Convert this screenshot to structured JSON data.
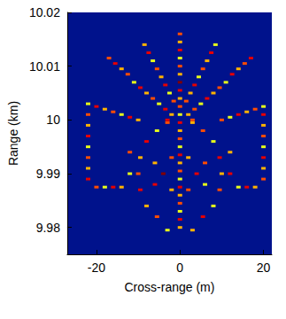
{
  "chart_data": {
    "type": "heatmap",
    "xlabel": "Cross-range (m)",
    "ylabel": "Range (km)",
    "xlim": [
      -27,
      22
    ],
    "xticks": [
      -20,
      0,
      20
    ],
    "ylim": [
      9.975,
      10.02
    ],
    "yticks": [
      9.98,
      9.99,
      10,
      10.01,
      10.02
    ],
    "zlim": [
      0,
      1
    ],
    "grid": false,
    "cells": [
      [
        0,
        10.016,
        0.8
      ],
      [
        0,
        10.0145,
        0.7
      ],
      [
        0,
        10.013,
        0.9
      ],
      [
        0,
        10.0115,
        0.6
      ],
      [
        0,
        10.01,
        0.8
      ],
      [
        0,
        10.0085,
        0.7
      ],
      [
        0,
        10.007,
        1.0
      ],
      [
        0,
        10.0055,
        0.9
      ],
      [
        0,
        10.004,
        0.7
      ],
      [
        0,
        10.0025,
        0.8
      ],
      [
        0,
        10.001,
        0.6
      ],
      [
        0,
        9.9995,
        0.9
      ],
      [
        0,
        9.998,
        0.7
      ],
      [
        0,
        9.9965,
        0.8
      ],
      [
        0,
        9.995,
        0.6
      ],
      [
        0,
        9.9935,
        0.9
      ],
      [
        0,
        9.992,
        0.7
      ],
      [
        0,
        9.9905,
        0.8
      ],
      [
        0,
        9.989,
        0.6
      ],
      [
        0,
        9.9875,
        0.9
      ],
      [
        0,
        9.986,
        0.7
      ],
      [
        0,
        9.9845,
        0.8
      ],
      [
        0,
        9.983,
        0.6
      ],
      [
        0,
        9.9815,
        0.9
      ],
      [
        0,
        9.98,
        0.7
      ],
      [
        -2,
        10.001,
        0.7
      ],
      [
        -3.5,
        10.002,
        0.9
      ],
      [
        -5,
        10.003,
        0.6
      ],
      [
        -6.5,
        10.004,
        0.8
      ],
      [
        -8,
        10.005,
        0.7
      ],
      [
        -9.5,
        10.006,
        0.9
      ],
      [
        -11,
        10.007,
        0.6
      ],
      [
        -12.5,
        10.0085,
        0.8
      ],
      [
        -14,
        10.0095,
        0.7
      ],
      [
        -15.5,
        10.0105,
        0.9
      ],
      [
        -17,
        10.0115,
        0.8
      ],
      [
        2,
        10.001,
        0.7
      ],
      [
        3.5,
        10.002,
        0.8
      ],
      [
        5,
        10.003,
        0.6
      ],
      [
        6.5,
        10.004,
        0.9
      ],
      [
        8,
        10.005,
        0.7
      ],
      [
        9.5,
        10.006,
        0.8
      ],
      [
        11,
        10.007,
        0.6
      ],
      [
        12.5,
        10.0085,
        0.9
      ],
      [
        14,
        10.0095,
        0.7
      ],
      [
        15.5,
        10.0105,
        0.8
      ],
      [
        17,
        10.0115,
        0.9
      ],
      [
        -1.5,
        10.0035,
        0.8
      ],
      [
        -2.5,
        10.005,
        0.6
      ],
      [
        -3.5,
        10.0065,
        0.9
      ],
      [
        -4.5,
        10.008,
        0.7
      ],
      [
        -5.5,
        10.0095,
        0.8
      ],
      [
        -6.5,
        10.011,
        0.6
      ],
      [
        -7.5,
        10.0125,
        0.9
      ],
      [
        -8.5,
        10.014,
        0.7
      ],
      [
        1.5,
        10.0035,
        0.8
      ],
      [
        2.5,
        10.005,
        0.7
      ],
      [
        3.5,
        10.0065,
        0.9
      ],
      [
        4.5,
        10.008,
        0.6
      ],
      [
        5.5,
        10.0095,
        0.8
      ],
      [
        6.5,
        10.011,
        0.7
      ],
      [
        7.5,
        10.0125,
        0.9
      ],
      [
        8.5,
        10.014,
        0.6
      ],
      [
        -10,
        10.0,
        0.7
      ],
      [
        -12,
        10.0005,
        0.9
      ],
      [
        -14,
        10.001,
        0.6
      ],
      [
        -16,
        10.0015,
        0.8
      ],
      [
        -18,
        10.002,
        0.7
      ],
      [
        -20,
        10.0025,
        0.9
      ],
      [
        -22,
        10.003,
        0.6
      ],
      [
        -22,
        10.001,
        0.8
      ],
      [
        -22,
        9.999,
        0.7
      ],
      [
        -22,
        9.997,
        0.9
      ],
      [
        -22,
        9.995,
        0.6
      ],
      [
        -22,
        9.993,
        0.8
      ],
      [
        -22,
        9.991,
        0.7
      ],
      [
        -22,
        9.989,
        0.9
      ],
      [
        -20,
        9.9875,
        0.8
      ],
      [
        -18,
        9.9875,
        0.6
      ],
      [
        -16,
        9.9875,
        0.9
      ],
      [
        -14,
        9.9875,
        0.7
      ],
      [
        10,
        10.0,
        0.8
      ],
      [
        12,
        10.0005,
        0.6
      ],
      [
        14,
        10.001,
        0.9
      ],
      [
        16,
        10.0015,
        0.7
      ],
      [
        18,
        10.002,
        0.8
      ],
      [
        20,
        10.0025,
        0.6
      ],
      [
        20,
        10.001,
        0.9
      ],
      [
        20,
        9.999,
        0.7
      ],
      [
        20,
        9.997,
        0.8
      ],
      [
        20,
        9.995,
        0.6
      ],
      [
        20,
        9.993,
        0.9
      ],
      [
        20,
        9.991,
        0.7
      ],
      [
        20,
        9.989,
        0.8
      ],
      [
        18,
        9.9875,
        0.7
      ],
      [
        16,
        9.9875,
        0.9
      ],
      [
        14,
        9.9875,
        0.6
      ],
      [
        -10,
        9.99,
        0.8
      ],
      [
        -9.5,
        9.993,
        0.7
      ],
      [
        -8,
        9.996,
        0.9
      ],
      [
        -5.5,
        9.998,
        0.6
      ],
      [
        -3,
        9.9995,
        0.8
      ],
      [
        -9.5,
        9.987,
        0.9
      ],
      [
        -8,
        9.984,
        0.7
      ],
      [
        -5.5,
        9.982,
        0.8
      ],
      [
        -3,
        9.9795,
        0.6
      ],
      [
        10,
        9.99,
        0.7
      ],
      [
        9.5,
        9.993,
        0.9
      ],
      [
        8,
        9.996,
        0.6
      ],
      [
        5.5,
        9.998,
        0.8
      ],
      [
        3,
        9.9995,
        0.7
      ],
      [
        9.5,
        9.987,
        0.8
      ],
      [
        8,
        9.984,
        0.6
      ],
      [
        5.5,
        9.982,
        0.9
      ],
      [
        3,
        9.9795,
        0.7
      ],
      [
        -4,
        9.99,
        1.0
      ],
      [
        -2,
        9.993,
        0.8
      ],
      [
        -2,
        9.987,
        0.7
      ],
      [
        4,
        9.99,
        0.9
      ],
      [
        2,
        9.993,
        0.7
      ],
      [
        2,
        9.987,
        0.8
      ],
      [
        -3,
        10.0,
        0.9
      ],
      [
        3,
        10.0,
        0.8
      ],
      [
        -6,
        9.992,
        0.7
      ],
      [
        6,
        9.992,
        0.8
      ],
      [
        -6,
        9.988,
        0.9
      ],
      [
        6,
        9.988,
        0.6
      ],
      [
        -12,
        9.994,
        0.8
      ],
      [
        12,
        9.994,
        0.7
      ],
      [
        -12,
        9.99,
        0.6
      ],
      [
        12,
        9.99,
        0.9
      ]
    ]
  }
}
